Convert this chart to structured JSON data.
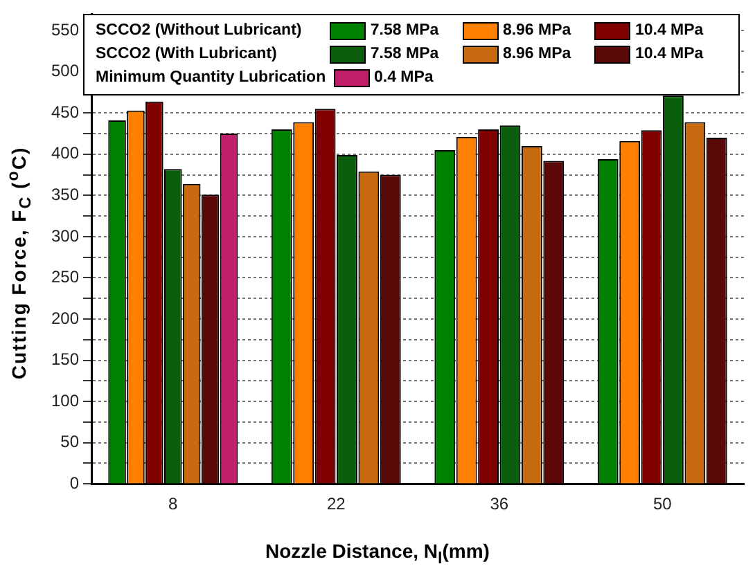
{
  "chart_data": {
    "type": "bar",
    "xlabel": "Nozzle Distance, N$_{l}$(mm)",
    "ylabel": "Cutting Force, F$_{C}$ ($^{o}$C)",
    "categories": [
      "8",
      "22",
      "36",
      "50"
    ],
    "series": [
      {
        "name": "7.58 MPa",
        "color": "#008000",
        "values": [
          441,
          430,
          405,
          394
        ]
      },
      {
        "name": "8.96 MPa",
        "color": "#ff8000",
        "values": [
          453,
          439,
          421,
          416
        ]
      },
      {
        "name": "10.4 MPa",
        "color": "#800000",
        "values": [
          464,
          455,
          430,
          429
        ]
      },
      {
        "name": "7.58 MPa",
        "color": "#0b5e0b",
        "values": [
          382,
          399,
          435,
          471
        ]
      },
      {
        "name": "8.96 MPa",
        "color": "#c86a10",
        "values": [
          364,
          379,
          410,
          439
        ]
      },
      {
        "name": "10.4 MPa",
        "color": "#5a0808",
        "values": [
          351,
          375,
          392,
          420
        ]
      },
      {
        "name": "0.4 MPa",
        "color": "#c0206a",
        "values": [
          425,
          null,
          null,
          null
        ]
      }
    ],
    "annotations": [
      "SCCO2 (Without Lubricant)",
      "SCCO2 (With Lubricant)",
      "Minimum Quantity Lubrication"
    ],
    "ylim": [
      0,
      570
    ],
    "yticks": [
      0,
      {
        "value": 25,
        "label": null
      },
      50,
      {
        "value": 75,
        "label": null
      },
      100,
      {
        "value": 125,
        "label": null
      },
      150,
      {
        "value": 175,
        "label": null
      },
      200,
      {
        "value": 225,
        "label": null
      },
      250,
      {
        "value": 275,
        "label": null
      },
      300,
      {
        "value": 325,
        "label": null
      },
      350,
      {
        "value": 375,
        "label": null
      },
      400,
      {
        "value": 425,
        "label": null
      },
      450,
      {
        "value": 475,
        "label": null
      },
      500,
      {
        "value": 525,
        "label": null
      },
      550
    ],
    "grid": "y",
    "legend": "top"
  }
}
